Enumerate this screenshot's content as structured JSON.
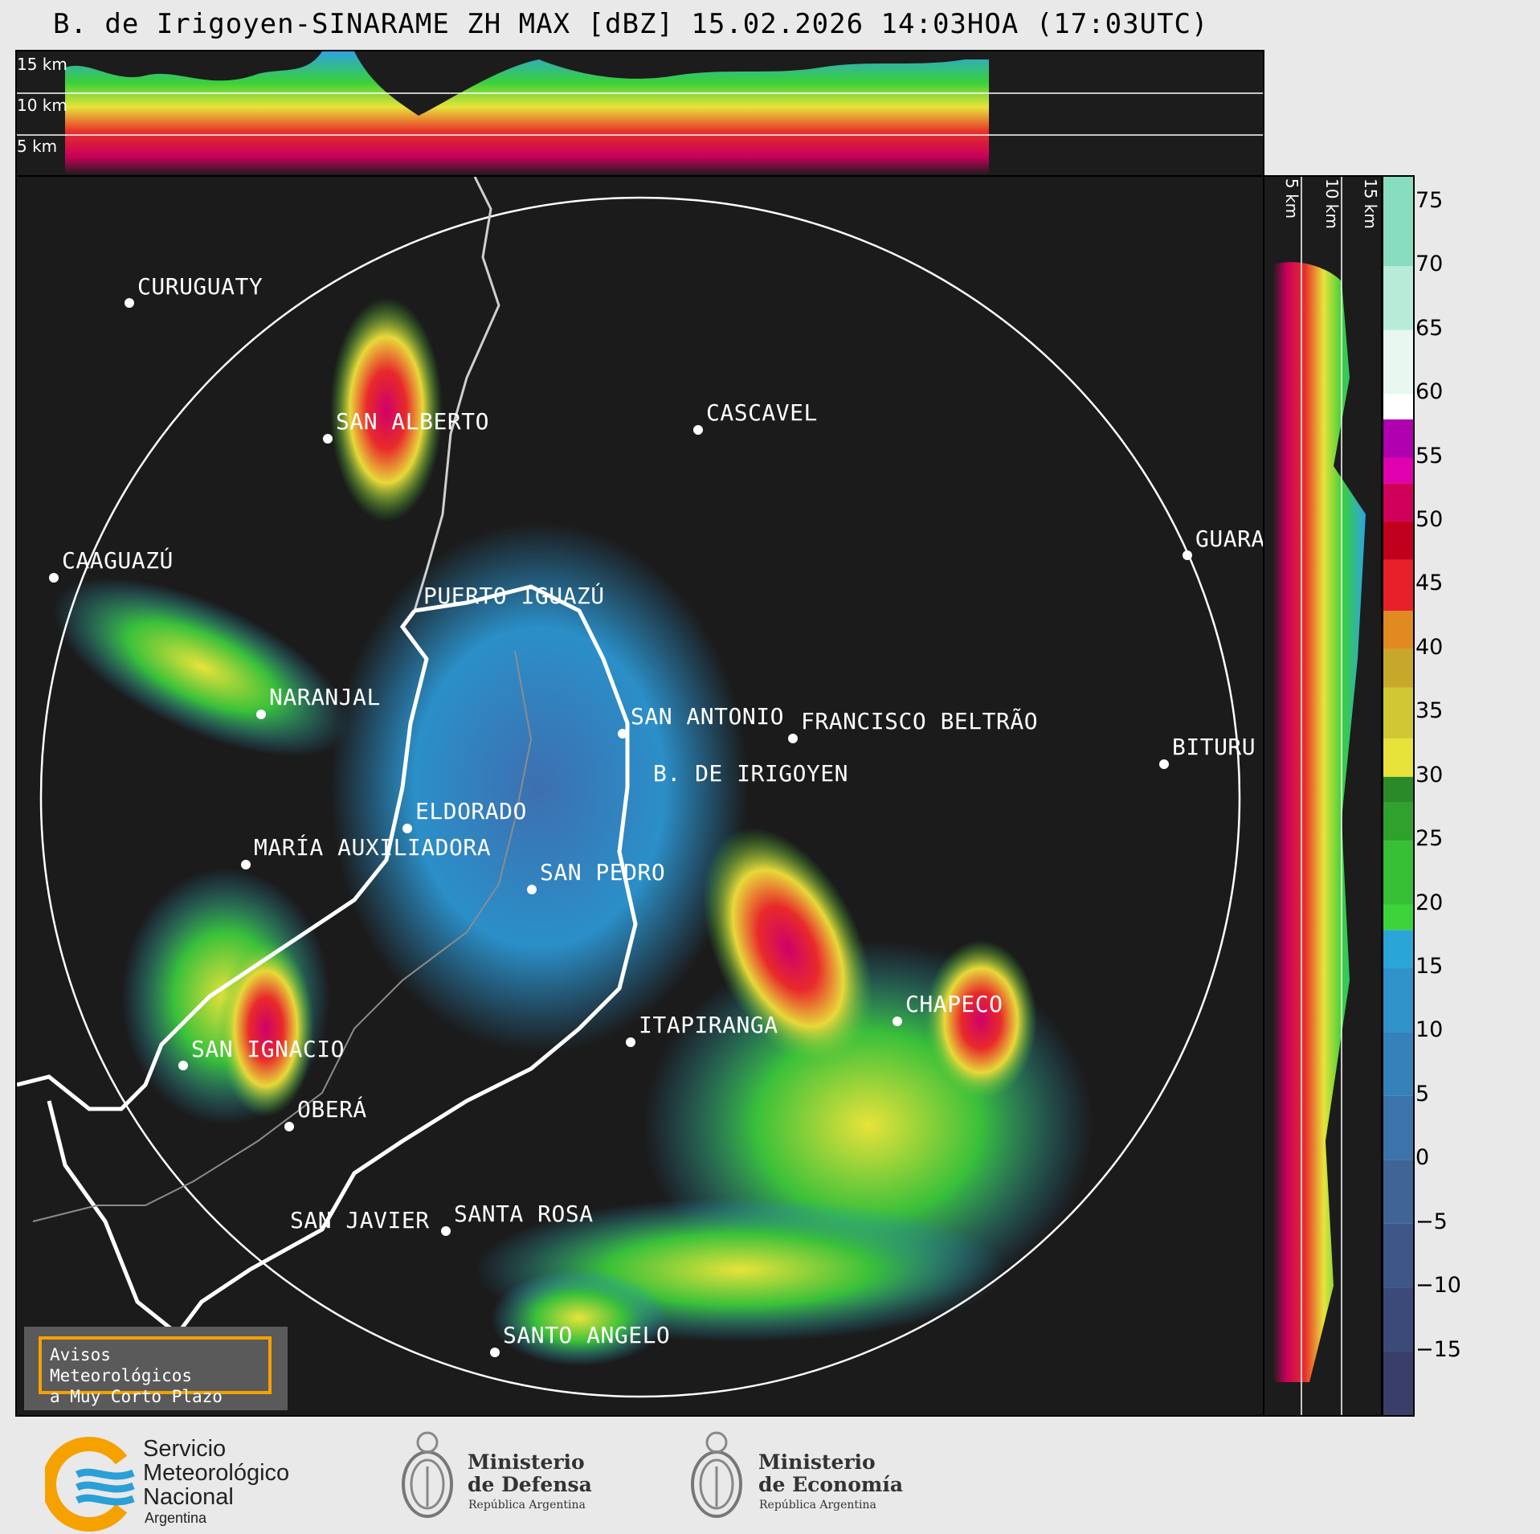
{
  "title": "B. de Irigoyen-SINARAME ZH MAX [dBZ] 15.02.2026 14:03HOA (17:03UTC)",
  "height_labels": [
    "15 km",
    "10 km",
    "5 km"
  ],
  "colorbar": {
    "ticks": [
      "75",
      "70",
      "65",
      "60",
      "55",
      "50",
      "45",
      "40",
      "35",
      "30",
      "25",
      "20",
      "15",
      "10",
      "5",
      "0",
      "−5",
      "−10",
      "−15"
    ],
    "range": [
      -20,
      77
    ]
  },
  "cities": [
    {
      "name": "CURUGUATY"
    },
    {
      "name": "SAN ALBERTO"
    },
    {
      "name": "CASCAVEL"
    },
    {
      "name": "CAAGUAZÚ"
    },
    {
      "name": "GUARA"
    },
    {
      "name": "PUERTO IGUAZÚ"
    },
    {
      "name": "NARANJAL"
    },
    {
      "name": "SAN ANTONIO"
    },
    {
      "name": "FRANCISCO BELTRÃO"
    },
    {
      "name": "BITURU"
    },
    {
      "name": "B. DE IRIGOYEN"
    },
    {
      "name": "ELDORADO"
    },
    {
      "name": "MARÍA AUXILIADORA"
    },
    {
      "name": "SAN PEDRO"
    },
    {
      "name": "CHAPECO"
    },
    {
      "name": "ITAPIRANGA"
    },
    {
      "name": "SAN IGNACIO"
    },
    {
      "name": "OBERÁ"
    },
    {
      "name": "SAN JAVIER"
    },
    {
      "name": "SANTA ROSA"
    },
    {
      "name": "SANTO ANGELO"
    }
  ],
  "warning": {
    "line1": "Avisos Meteorológicos",
    "line2": "a Muy Corto Plazo"
  },
  "logos": {
    "smn_line1": "Servicio",
    "smn_line2": "Meteorológico",
    "smn_line3": "Nacional",
    "smn_line4": "Argentina",
    "def_line1": "Ministerio",
    "def_line2": "de Defensa",
    "def_line3": "República Argentina",
    "eco_line1": "Ministerio",
    "eco_line2": "de Economía",
    "eco_line3": "República Argentina"
  },
  "colors": {
    "smn_blue": "#2a9fd8",
    "smn_orange": "#f5a100",
    "warning_border": "#f5a100"
  }
}
